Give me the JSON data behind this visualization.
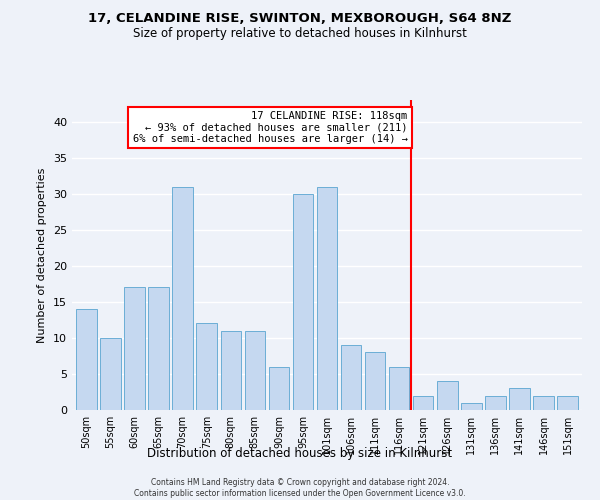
{
  "title1": "17, CELANDINE RISE, SWINTON, MEXBOROUGH, S64 8NZ",
  "title2": "Size of property relative to detached houses in Kilnhurst",
  "xlabel": "Distribution of detached houses by size in Kilnhurst",
  "ylabel": "Number of detached properties",
  "categories": [
    "50sqm",
    "55sqm",
    "60sqm",
    "65sqm",
    "70sqm",
    "75sqm",
    "80sqm",
    "85sqm",
    "90sqm",
    "95sqm",
    "101sqm",
    "106sqm",
    "111sqm",
    "116sqm",
    "121sqm",
    "126sqm",
    "131sqm",
    "136sqm",
    "141sqm",
    "146sqm",
    "151sqm"
  ],
  "values": [
    14,
    10,
    17,
    17,
    31,
    12,
    11,
    11,
    6,
    30,
    31,
    9,
    8,
    6,
    2,
    4,
    1,
    2,
    3,
    2,
    2
  ],
  "bar_color": "#c5d8f0",
  "bar_edge_color": "#6baed6",
  "bar_width": 0.85,
  "ylim": [
    0,
    43
  ],
  "yticks": [
    0,
    5,
    10,
    15,
    20,
    25,
    30,
    35,
    40
  ],
  "red_line_x": 13.5,
  "annotation_title": "17 CELANDINE RISE: 118sqm",
  "annotation_line1": "← 93% of detached houses are smaller (211)",
  "annotation_line2": "6% of semi-detached houses are larger (14) →",
  "footer1": "Contains HM Land Registry data © Crown copyright and database right 2024.",
  "footer2": "Contains public sector information licensed under the Open Government Licence v3.0.",
  "background_color": "#eef2f9",
  "grid_color": "#d8dfe8"
}
